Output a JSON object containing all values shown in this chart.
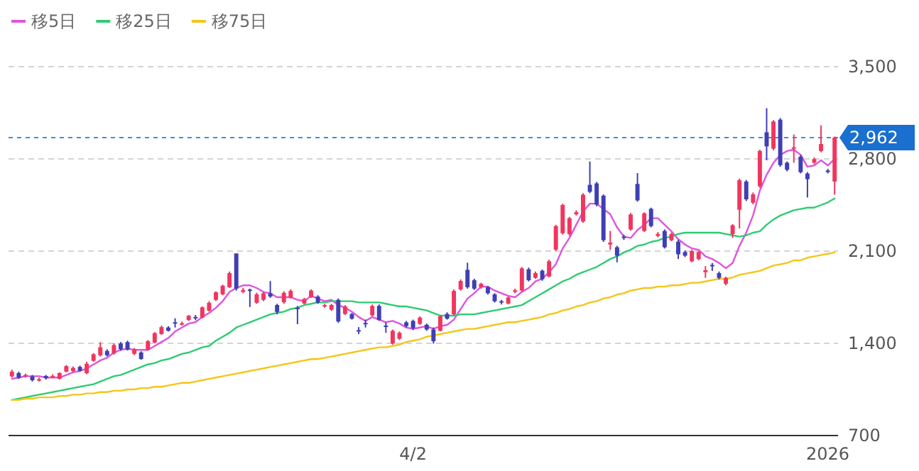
{
  "chart_data": {
    "type": "candlestick",
    "categories": [
      null,
      null,
      null,
      null,
      null,
      null,
      null,
      null,
      null,
      null,
      null,
      null,
      null,
      null,
      null,
      null,
      null,
      null,
      null,
      null,
      null,
      null,
      null,
      null,
      null,
      null,
      null,
      null,
      null,
      null,
      null,
      null,
      null,
      null,
      null,
      null,
      null,
      null,
      null,
      null,
      null,
      null,
      null,
      null,
      null,
      null,
      null,
      null,
      null,
      null,
      null,
      null,
      null,
      null,
      null,
      null,
      null,
      null,
      null,
      "4/2",
      null,
      null,
      null,
      null,
      null,
      null,
      null,
      null,
      null,
      null,
      null,
      null,
      null,
      null,
      null,
      null,
      null,
      null,
      null,
      null,
      null,
      null,
      null,
      null,
      null,
      null,
      null,
      null,
      null,
      null,
      null,
      null,
      null,
      null,
      null,
      null,
      null,
      null,
      null,
      null,
      null,
      null,
      null,
      null,
      null,
      null,
      null,
      null,
      null,
      null,
      null,
      null,
      null,
      null,
      null,
      null,
      null,
      null,
      null,
      null,
      "2026",
      null
    ],
    "ohlc": [
      [
        1149,
        1200,
        1140,
        1185
      ],
      [
        1174,
        1185,
        1130,
        1138
      ],
      [
        1150,
        1170,
        1140,
        1160
      ],
      [
        1149,
        1160,
        1110,
        1120
      ],
      [
        1118,
        1140,
        1110,
        1128
      ],
      [
        1152,
        1160,
        1125,
        1135
      ],
      [
        1145,
        1165,
        1135,
        1152
      ],
      [
        1131,
        1180,
        1125,
        1174
      ],
      [
        1185,
        1235,
        1180,
        1227
      ],
      [
        1189,
        1225,
        1180,
        1213
      ],
      [
        1221,
        1230,
        1185,
        1192
      ],
      [
        1174,
        1260,
        1165,
        1245
      ],
      [
        1267,
        1325,
        1260,
        1317
      ],
      [
        1309,
        1409,
        1300,
        1370
      ],
      [
        1342,
        1355,
        1300,
        1309
      ],
      [
        1323,
        1400,
        1315,
        1387
      ],
      [
        1398,
        1410,
        1345,
        1355
      ],
      [
        1409,
        1420,
        1345,
        1352
      ],
      [
        1320,
        1365,
        1310,
        1355
      ],
      [
        1331,
        1340,
        1275,
        1281
      ],
      [
        1352,
        1425,
        1345,
        1416
      ],
      [
        1406,
        1485,
        1400,
        1477
      ],
      [
        1470,
        1535,
        1465,
        1523
      ],
      [
        1520,
        1530,
        1490,
        1495
      ],
      [
        1560,
        1590,
        1520,
        1550
      ],
      [
        1545,
        1565,
        1535,
        1552
      ],
      [
        1577,
        1615,
        1570,
        1609
      ],
      [
        1600,
        1615,
        1575,
        1590
      ],
      [
        1595,
        1680,
        1590,
        1673
      ],
      [
        1648,
        1720,
        1640,
        1708
      ],
      [
        1730,
        1795,
        1720,
        1787
      ],
      [
        1772,
        1845,
        1765,
        1837
      ],
      [
        1826,
        1945,
        1820,
        1933
      ],
      [
        2082,
        2082,
        1800,
        1815
      ],
      [
        1790,
        1820,
        1780,
        1805
      ],
      [
        1808,
        1815,
        1676,
        1797
      ],
      [
        1708,
        1785,
        1700,
        1772
      ],
      [
        1730,
        1790,
        1720,
        1780
      ],
      [
        1780,
        1873,
        1745,
        1755
      ],
      [
        1691,
        1700,
        1620,
        1638
      ],
      [
        1712,
        1795,
        1700,
        1783
      ],
      [
        1748,
        1810,
        1740,
        1798
      ],
      [
        1670,
        1684,
        1545,
        1660
      ],
      [
        1702,
        1745,
        1695,
        1737
      ],
      [
        1750,
        1810,
        1745,
        1800
      ],
      [
        1755,
        1765,
        1700,
        1708
      ],
      [
        1680,
        1700,
        1670,
        1690
      ],
      [
        1655,
        1700,
        1645,
        1691
      ],
      [
        1730,
        1740,
        1555,
        1566
      ],
      [
        1623,
        1690,
        1615,
        1680
      ],
      [
        1623,
        1630,
        1580,
        1587
      ],
      [
        1500,
        1523,
        1470,
        1490
      ],
      [
        1555,
        1580,
        1520,
        1545
      ],
      [
        1612,
        1695,
        1605,
        1684
      ],
      [
        1684,
        1695,
        1570,
        1577
      ],
      [
        1535,
        1559,
        1480,
        1525
      ],
      [
        1398,
        1505,
        1390,
        1495
      ],
      [
        1435,
        1490,
        1425,
        1480
      ],
      [
        1559,
        1570,
        1520,
        1531
      ],
      [
        1570,
        1580,
        1500,
        1516
      ],
      [
        1548,
        1605,
        1540,
        1595
      ],
      [
        1541,
        1550,
        1495,
        1505
      ],
      [
        1505,
        1520,
        1398,
        1416
      ],
      [
        1495,
        1615,
        1490,
        1606
      ],
      [
        1623,
        1635,
        1580,
        1587
      ],
      [
        1620,
        1810,
        1610,
        1798
      ],
      [
        1809,
        1885,
        1800,
        1873
      ],
      [
        1958,
        2012,
        1815,
        1826
      ],
      [
        1879,
        1890,
        1805,
        1815
      ],
      [
        1826,
        1860,
        1815,
        1852
      ],
      [
        1826,
        1835,
        1770,
        1780
      ],
      [
        1772,
        1780,
        1710,
        1719
      ],
      [
        1720,
        1730,
        1695,
        1710
      ],
      [
        1702,
        1755,
        1695,
        1748
      ],
      [
        1790,
        1815,
        1780,
        1802
      ],
      [
        1801,
        1980,
        1790,
        1969
      ],
      [
        1962,
        1975,
        1870,
        1879
      ],
      [
        1897,
        1945,
        1890,
        1933
      ],
      [
        1951,
        1960,
        1875,
        1887
      ],
      [
        1908,
        2035,
        1900,
        2023
      ],
      [
        2111,
        2300,
        2100,
        2290
      ],
      [
        2236,
        2460,
        2225,
        2450
      ],
      [
        2229,
        2360,
        2215,
        2350
      ],
      [
        2380,
        2410,
        2370,
        2395
      ],
      [
        2325,
        2540,
        2315,
        2528
      ],
      [
        2603,
        2780,
        2540,
        2550
      ],
      [
        2614,
        2625,
        2440,
        2453
      ],
      [
        2521,
        2530,
        2170,
        2183
      ],
      [
        2150,
        2253,
        2110,
        2165
      ],
      [
        2129,
        2140,
        2015,
        2065
      ],
      [
        2210,
        2225,
        2185,
        2200
      ],
      [
        2264,
        2390,
        2255,
        2378
      ],
      [
        2610,
        2692,
        2475,
        2485
      ],
      [
        2253,
        2395,
        2245,
        2386
      ],
      [
        2421,
        2430,
        2280,
        2290
      ],
      [
        2215,
        2245,
        2205,
        2230
      ],
      [
        2253,
        2265,
        2120,
        2129
      ],
      [
        2183,
        2240,
        2175,
        2229
      ],
      [
        2172,
        2185,
        2040,
        2076
      ],
      [
        2093,
        2105,
        2055,
        2065
      ],
      [
        2023,
        2110,
        2015,
        2101
      ],
      [
        2040,
        2100,
        2030,
        2093
      ],
      [
        1940,
        1986,
        1897,
        1955
      ],
      [
        1995,
        2010,
        1950,
        1985
      ],
      [
        1933,
        1945,
        1885,
        1897
      ],
      [
        1852,
        1905,
        1840,
        1897
      ],
      [
        2229,
        2305,
        2200,
        2296
      ],
      [
        2414,
        2650,
        2272,
        2638
      ],
      [
        2628,
        2640,
        2480,
        2493
      ],
      [
        2467,
        2545,
        2455,
        2531
      ],
      [
        2592,
        2870,
        2580,
        2860
      ],
      [
        3002,
        3185,
        2790,
        2895
      ],
      [
        2878,
        3095,
        2865,
        3084
      ],
      [
        3098,
        3110,
        2740,
        2753
      ],
      [
        2771,
        2780,
        2705,
        2717
      ],
      [
        2880,
        2985,
        2771,
        2888
      ],
      [
        2817,
        2830,
        2690,
        2699
      ],
      [
        2689,
        2700,
        2507,
        2646
      ],
      [
        2771,
        2810,
        2760,
        2799
      ],
      [
        2860,
        3055,
        2850,
        2913
      ],
      [
        2712,
        2725,
        2690,
        2700
      ],
      [
        2628,
        2970,
        2528,
        2962
      ]
    ],
    "series": [
      {
        "name": "移5日",
        "type": "line",
        "color": "#dd55dd",
        "values": [
          1130,
          1140,
          1150,
          1150,
          1150,
          1140,
          1140,
          1140,
          1160,
          1180,
          1190,
          1210,
          1240,
          1270,
          1290,
          1330,
          1350,
          1360,
          1350,
          1350,
          1350,
          1380,
          1410,
          1440,
          1490,
          1520,
          1550,
          1560,
          1600,
          1630,
          1670,
          1720,
          1790,
          1820,
          1840,
          1840,
          1820,
          1790,
          1780,
          1750,
          1750,
          1750,
          1730,
          1720,
          1760,
          1740,
          1720,
          1730,
          1690,
          1670,
          1640,
          1600,
          1570,
          1600,
          1580,
          1560,
          1570,
          1550,
          1520,
          1510,
          1520,
          1530,
          1510,
          1530,
          1540,
          1580,
          1660,
          1740,
          1780,
          1830,
          1830,
          1800,
          1780,
          1760,
          1750,
          1790,
          1820,
          1870,
          1890,
          1940,
          2000,
          2120,
          2200,
          2300,
          2400,
          2460,
          2460,
          2420,
          2380,
          2280,
          2210,
          2200,
          2260,
          2300,
          2350,
          2350,
          2300,
          2250,
          2190,
          2150,
          2120,
          2110,
          2060,
          2040,
          2010,
          1970,
          2010,
          2140,
          2240,
          2370,
          2560,
          2680,
          2770,
          2830,
          2860,
          2870,
          2830,
          2740,
          2750,
          2790,
          2750,
          2800
        ]
      },
      {
        "name": "移25日",
        "type": "line",
        "color": "#2ecc71",
        "values": [
          970,
          980,
          990,
          1000,
          1010,
          1020,
          1030,
          1040,
          1050,
          1060,
          1070,
          1080,
          1090,
          1110,
          1130,
          1150,
          1160,
          1180,
          1200,
          1220,
          1240,
          1250,
          1270,
          1280,
          1300,
          1320,
          1330,
          1350,
          1370,
          1380,
          1420,
          1450,
          1480,
          1520,
          1540,
          1560,
          1580,
          1600,
          1620,
          1630,
          1640,
          1660,
          1670,
          1690,
          1700,
          1710,
          1710,
          1720,
          1720,
          1720,
          1720,
          1710,
          1710,
          1710,
          1710,
          1700,
          1690,
          1680,
          1680,
          1670,
          1660,
          1650,
          1630,
          1610,
          1610,
          1610,
          1620,
          1620,
          1620,
          1630,
          1640,
          1650,
          1660,
          1670,
          1680,
          1690,
          1720,
          1750,
          1780,
          1810,
          1840,
          1870,
          1890,
          1920,
          1940,
          1960,
          1980,
          2010,
          2040,
          2060,
          2090,
          2110,
          2140,
          2150,
          2170,
          2180,
          2200,
          2210,
          2230,
          2240,
          2240,
          2240,
          2240,
          2240,
          2240,
          2230,
          2220,
          2210,
          2220,
          2240,
          2250,
          2300,
          2340,
          2370,
          2390,
          2410,
          2420,
          2430,
          2430,
          2450,
          2470,
          2500
        ]
      },
      {
        "name": "移75日",
        "type": "line",
        "color": "#f5c518",
        "values": [
          970,
          970,
          980,
          980,
          990,
          990,
          990,
          1000,
          1000,
          1010,
          1010,
          1020,
          1020,
          1030,
          1030,
          1040,
          1040,
          1050,
          1050,
          1060,
          1060,
          1070,
          1070,
          1080,
          1090,
          1100,
          1100,
          1110,
          1120,
          1130,
          1140,
          1150,
          1160,
          1170,
          1180,
          1190,
          1200,
          1210,
          1220,
          1230,
          1240,
          1250,
          1260,
          1270,
          1280,
          1280,
          1290,
          1300,
          1310,
          1320,
          1330,
          1340,
          1350,
          1360,
          1370,
          1370,
          1380,
          1390,
          1410,
          1420,
          1430,
          1450,
          1460,
          1470,
          1480,
          1490,
          1500,
          1510,
          1510,
          1520,
          1530,
          1540,
          1550,
          1560,
          1560,
          1570,
          1580,
          1590,
          1600,
          1620,
          1630,
          1650,
          1660,
          1680,
          1690,
          1710,
          1720,
          1740,
          1750,
          1770,
          1780,
          1800,
          1810,
          1820,
          1820,
          1830,
          1830,
          1840,
          1840,
          1850,
          1860,
          1860,
          1870,
          1880,
          1890,
          1890,
          1900,
          1920,
          1930,
          1940,
          1950,
          1970,
          1990,
          2000,
          2010,
          2030,
          2030,
          2050,
          2060,
          2070,
          2080,
          2090
        ]
      }
    ],
    "ylim": [
      700,
      3500
    ],
    "yticks": [
      {
        "value": 700,
        "label": "700"
      },
      {
        "value": 1400,
        "label": "1,400"
      },
      {
        "value": 2100,
        "label": "2,100"
      },
      {
        "value": 2800,
        "label": "2,800"
      },
      {
        "value": 3500,
        "label": "3,500"
      }
    ],
    "grid": "y",
    "legend": "top left",
    "ref_lines": [
      {
        "axis": "y",
        "value": 2962,
        "label": "2,962",
        "color": "#1a6fcf",
        "line_style": "dashed"
      }
    ]
  }
}
